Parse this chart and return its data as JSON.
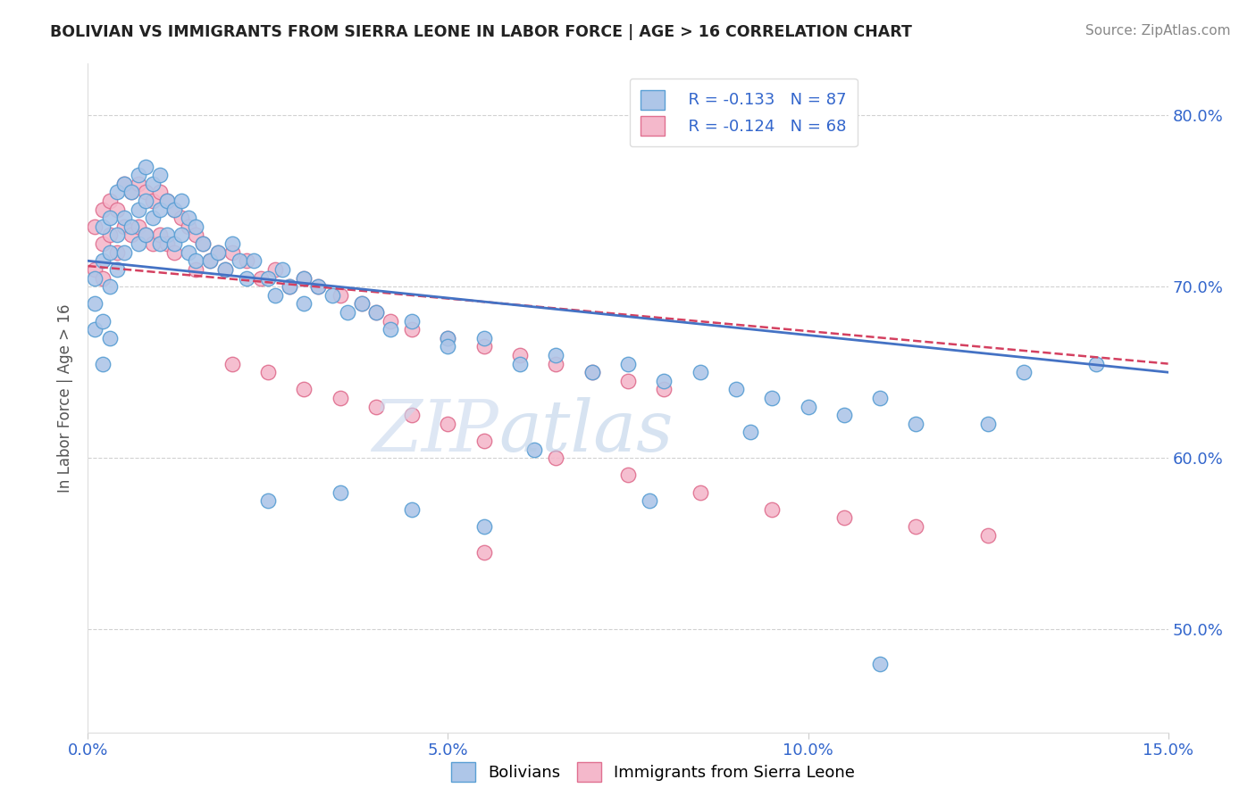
{
  "title": "BOLIVIAN VS IMMIGRANTS FROM SIERRA LEONE IN LABOR FORCE | AGE > 16 CORRELATION CHART",
  "source": "Source: ZipAtlas.com",
  "ylabel": "In Labor Force | Age > 16",
  "xlim": [
    0.0,
    15.0
  ],
  "ylim": [
    44.0,
    83.0
  ],
  "xtick_vals": [
    0.0,
    5.0,
    10.0,
    15.0
  ],
  "xtick_labels": [
    "0.0%",
    "5.0%",
    "10.0%",
    "15.0%"
  ],
  "ytick_vals": [
    50.0,
    60.0,
    70.0,
    80.0
  ],
  "ytick_labels": [
    "50.0%",
    "60.0%",
    "70.0%",
    "80.0%"
  ],
  "bolivian_color": "#aec6e8",
  "sierra_leone_color": "#f4b8cb",
  "bolivian_edge": "#5a9fd4",
  "sierra_leone_edge": "#e07090",
  "line_bolivian": "#4472c4",
  "line_sierra": "#d44060",
  "legend_r1": "R = -0.133",
  "legend_n1": "N = 87",
  "legend_r2": "R = -0.124",
  "legend_n2": "N = 68",
  "bolivian_x": [
    0.1,
    0.1,
    0.1,
    0.2,
    0.2,
    0.2,
    0.2,
    0.3,
    0.3,
    0.3,
    0.3,
    0.4,
    0.4,
    0.4,
    0.5,
    0.5,
    0.5,
    0.6,
    0.6,
    0.7,
    0.7,
    0.7,
    0.8,
    0.8,
    0.8,
    0.9,
    0.9,
    1.0,
    1.0,
    1.0,
    1.1,
    1.1,
    1.2,
    1.2,
    1.3,
    1.3,
    1.4,
    1.4,
    1.5,
    1.5,
    1.6,
    1.7,
    1.8,
    1.9,
    2.0,
    2.1,
    2.2,
    2.3,
    2.5,
    2.6,
    2.7,
    2.8,
    3.0,
    3.0,
    3.2,
    3.4,
    3.6,
    3.8,
    4.0,
    4.2,
    4.5,
    5.0,
    5.0,
    5.5,
    6.0,
    6.5,
    7.0,
    7.5,
    8.0,
    8.5,
    9.0,
    9.5,
    10.0,
    10.5,
    11.0,
    11.5,
    12.5,
    13.0,
    14.0,
    2.5,
    3.5,
    4.5,
    5.5,
    6.2,
    7.8,
    9.2,
    11.0
  ],
  "bolivian_y": [
    69.0,
    70.5,
    67.5,
    71.5,
    73.5,
    68.0,
    65.5,
    74.0,
    72.0,
    70.0,
    67.0,
    75.5,
    73.0,
    71.0,
    76.0,
    74.0,
    72.0,
    75.5,
    73.5,
    76.5,
    74.5,
    72.5,
    77.0,
    75.0,
    73.0,
    76.0,
    74.0,
    76.5,
    74.5,
    72.5,
    75.0,
    73.0,
    74.5,
    72.5,
    75.0,
    73.0,
    74.0,
    72.0,
    73.5,
    71.5,
    72.5,
    71.5,
    72.0,
    71.0,
    72.5,
    71.5,
    70.5,
    71.5,
    70.5,
    69.5,
    71.0,
    70.0,
    70.5,
    69.0,
    70.0,
    69.5,
    68.5,
    69.0,
    68.5,
    67.5,
    68.0,
    67.0,
    66.5,
    67.0,
    65.5,
    66.0,
    65.0,
    65.5,
    64.5,
    65.0,
    64.0,
    63.5,
    63.0,
    62.5,
    63.5,
    62.0,
    62.0,
    65.0,
    65.5,
    57.5,
    58.0,
    57.0,
    56.0,
    60.5,
    57.5,
    61.5,
    48.0
  ],
  "sierra_x": [
    0.1,
    0.1,
    0.2,
    0.2,
    0.2,
    0.3,
    0.3,
    0.4,
    0.4,
    0.5,
    0.5,
    0.6,
    0.6,
    0.7,
    0.7,
    0.8,
    0.8,
    0.9,
    0.9,
    1.0,
    1.0,
    1.1,
    1.1,
    1.2,
    1.2,
    1.3,
    1.4,
    1.5,
    1.5,
    1.6,
    1.7,
    1.8,
    1.9,
    2.0,
    2.2,
    2.4,
    2.6,
    2.8,
    3.0,
    3.2,
    3.5,
    3.8,
    4.0,
    4.2,
    4.5,
    5.0,
    5.5,
    6.0,
    6.5,
    7.0,
    7.5,
    8.0,
    2.0,
    2.5,
    3.0,
    3.5,
    4.0,
    4.5,
    5.0,
    5.5,
    6.5,
    7.5,
    8.5,
    9.5,
    10.5,
    11.5,
    12.5,
    5.5
  ],
  "sierra_y": [
    73.5,
    71.0,
    74.5,
    72.5,
    70.5,
    75.0,
    73.0,
    74.5,
    72.0,
    76.0,
    73.5,
    75.5,
    73.0,
    76.0,
    73.5,
    75.5,
    73.0,
    75.0,
    72.5,
    75.5,
    73.0,
    75.0,
    72.5,
    74.5,
    72.0,
    74.0,
    73.5,
    73.0,
    71.0,
    72.5,
    71.5,
    72.0,
    71.0,
    72.0,
    71.5,
    70.5,
    71.0,
    70.0,
    70.5,
    70.0,
    69.5,
    69.0,
    68.5,
    68.0,
    67.5,
    67.0,
    66.5,
    66.0,
    65.5,
    65.0,
    64.5,
    64.0,
    65.5,
    65.0,
    64.0,
    63.5,
    63.0,
    62.5,
    62.0,
    61.0,
    60.0,
    59.0,
    58.0,
    57.0,
    56.5,
    56.0,
    55.5,
    54.5
  ],
  "reg_bolivian_x0": 0.0,
  "reg_bolivian_y0": 71.5,
  "reg_bolivian_x1": 15.0,
  "reg_bolivian_y1": 65.0,
  "reg_sierra_x0": 0.0,
  "reg_sierra_y0": 71.2,
  "reg_sierra_x1": 15.0,
  "reg_sierra_y1": 65.5
}
